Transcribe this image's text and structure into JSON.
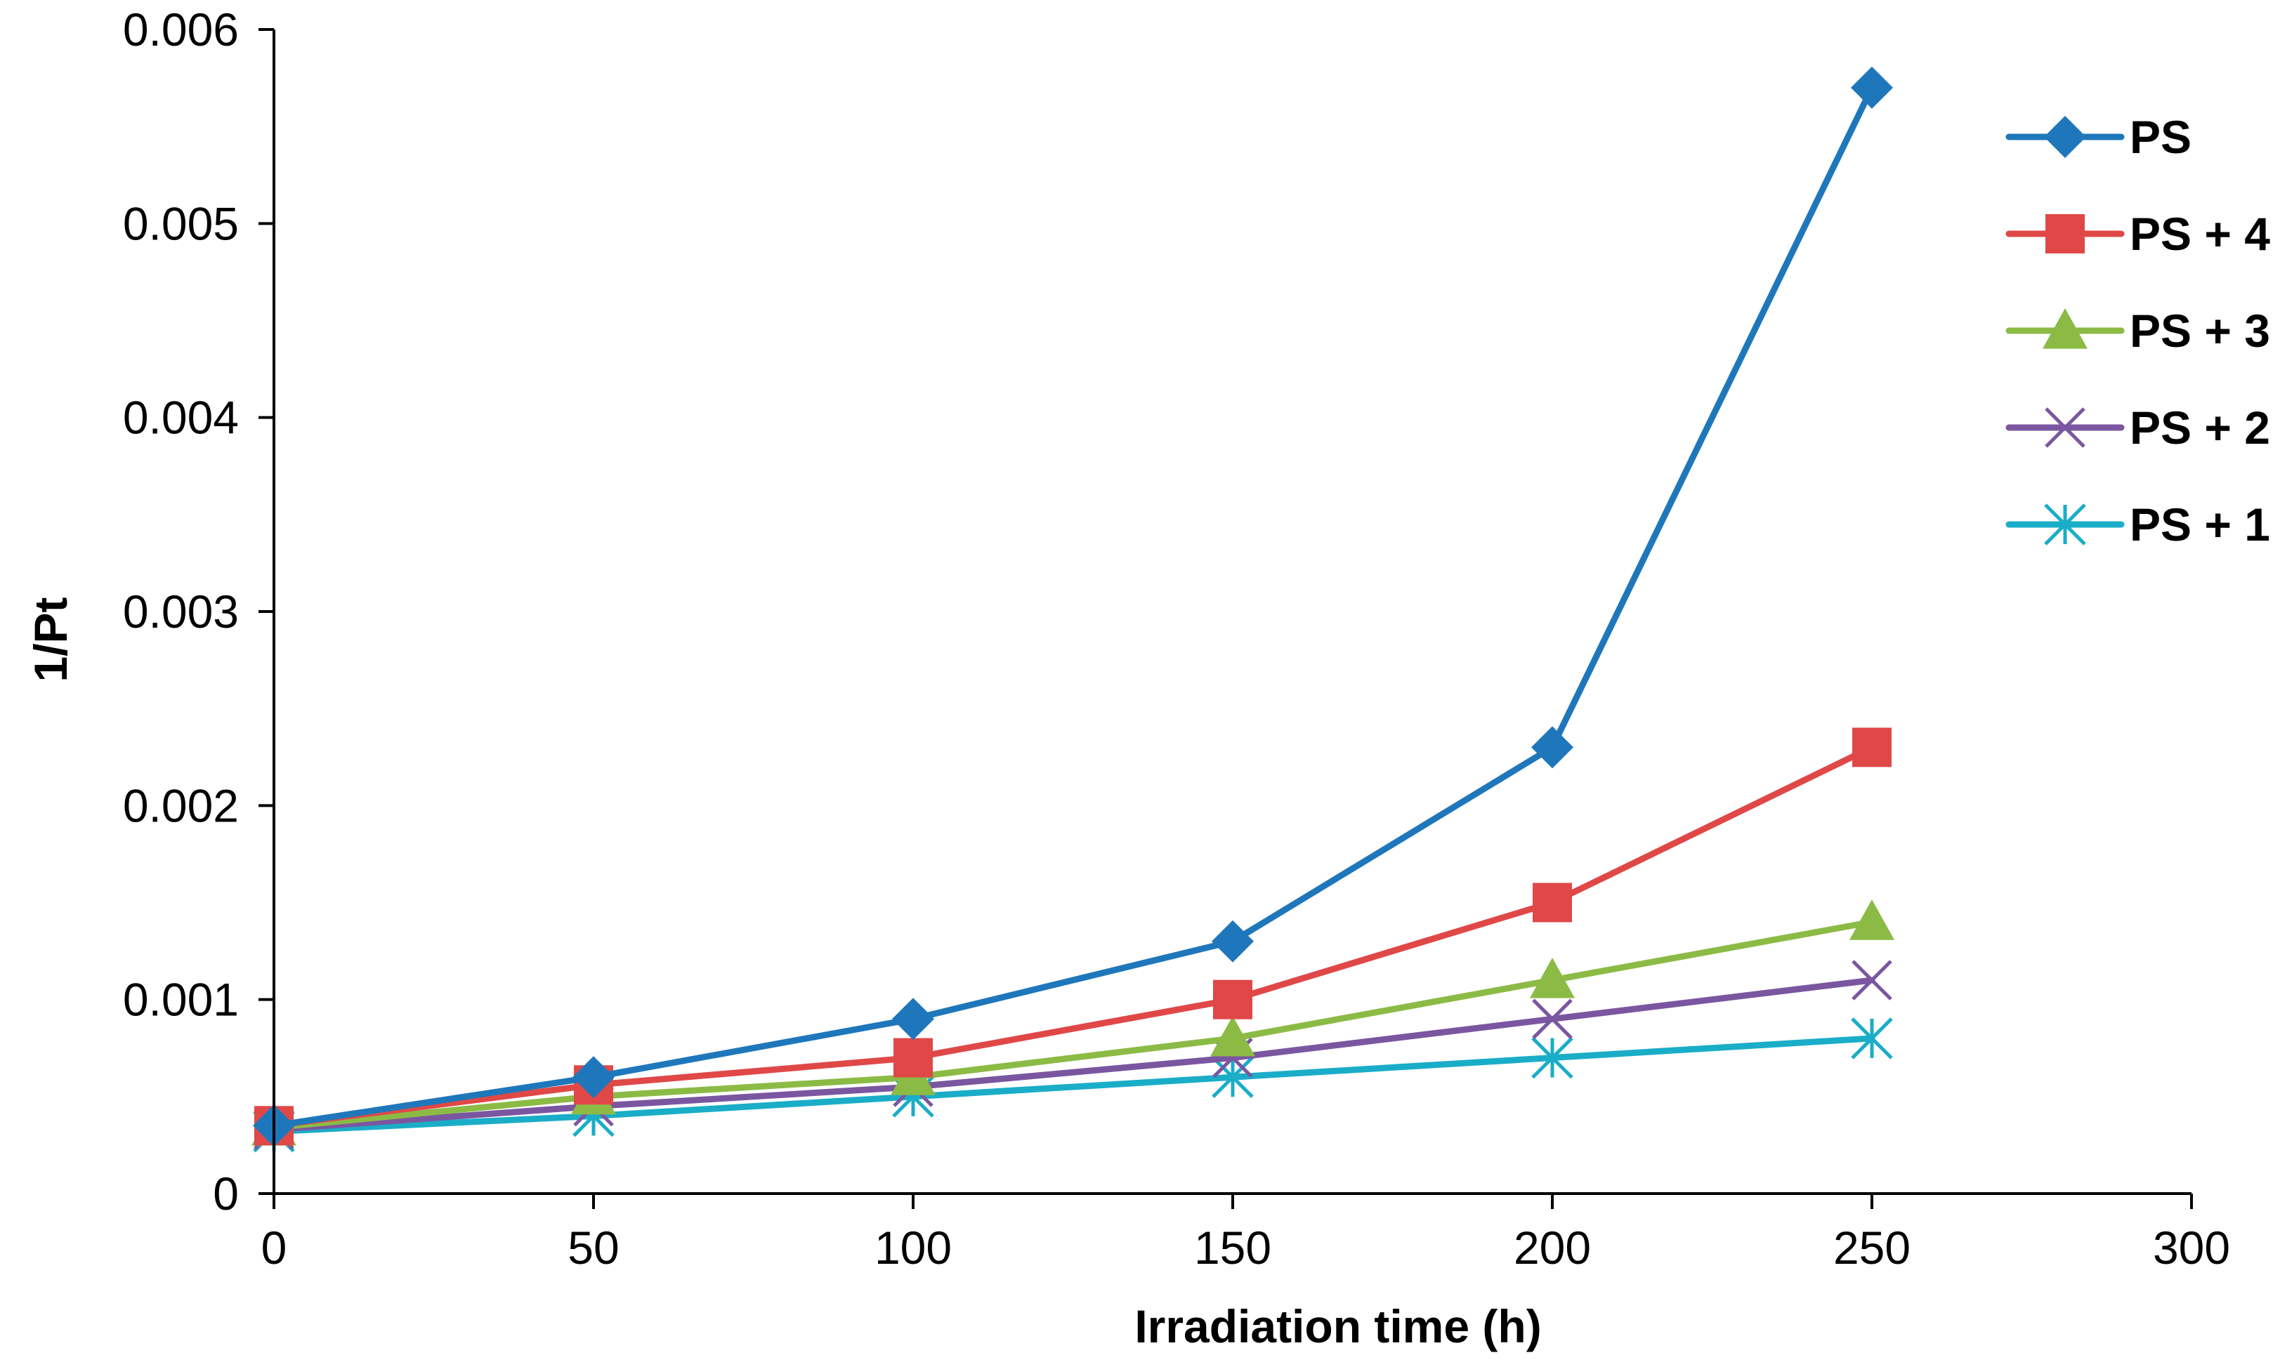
{
  "chart_data": {
    "type": "line",
    "title": "",
    "xlabel": "Irradiation time (h)",
    "ylabel": "1/Pt",
    "xlim": [
      0,
      300
    ],
    "ylim": [
      0,
      0.006
    ],
    "x_ticks": [
      0,
      50,
      100,
      150,
      200,
      250,
      300
    ],
    "x_tick_labels": [
      "0",
      "50",
      "100",
      "150",
      "200",
      "250",
      "300"
    ],
    "y_ticks": [
      0,
      0.001,
      0.002,
      0.003,
      0.004,
      0.005,
      0.006
    ],
    "y_tick_labels": [
      "0",
      "0.001",
      "0.002",
      "0.003",
      "0.004",
      "0.005",
      "0.006"
    ],
    "grid": false,
    "legend_position": "right",
    "x": [
      0,
      50,
      100,
      150,
      200,
      250
    ],
    "series": [
      {
        "name": "PS",
        "color": "#1F77BB",
        "marker": "diamond",
        "values": [
          0.00035,
          0.0006,
          0.0009,
          0.0013,
          0.0023,
          0.0057
        ]
      },
      {
        "name": "PS + 4",
        "color": "#E04848",
        "marker": "square",
        "values": [
          0.00035,
          0.00056,
          0.0007,
          0.001,
          0.0015,
          0.0023
        ]
      },
      {
        "name": "PS + 3",
        "color": "#8BBB45",
        "marker": "triangle",
        "values": [
          0.00034,
          0.0005,
          0.0006,
          0.0008,
          0.0011,
          0.0014
        ]
      },
      {
        "name": "PS + 2",
        "color": "#7B56A0",
        "marker": "x",
        "values": [
          0.00033,
          0.00045,
          0.00055,
          0.0007,
          0.0009,
          0.0011
        ]
      },
      {
        "name": "PS + 1",
        "color": "#1AADC8",
        "marker": "asterisk",
        "values": [
          0.00032,
          0.0004,
          0.0005,
          0.0006,
          0.0007,
          0.0008
        ]
      }
    ]
  }
}
